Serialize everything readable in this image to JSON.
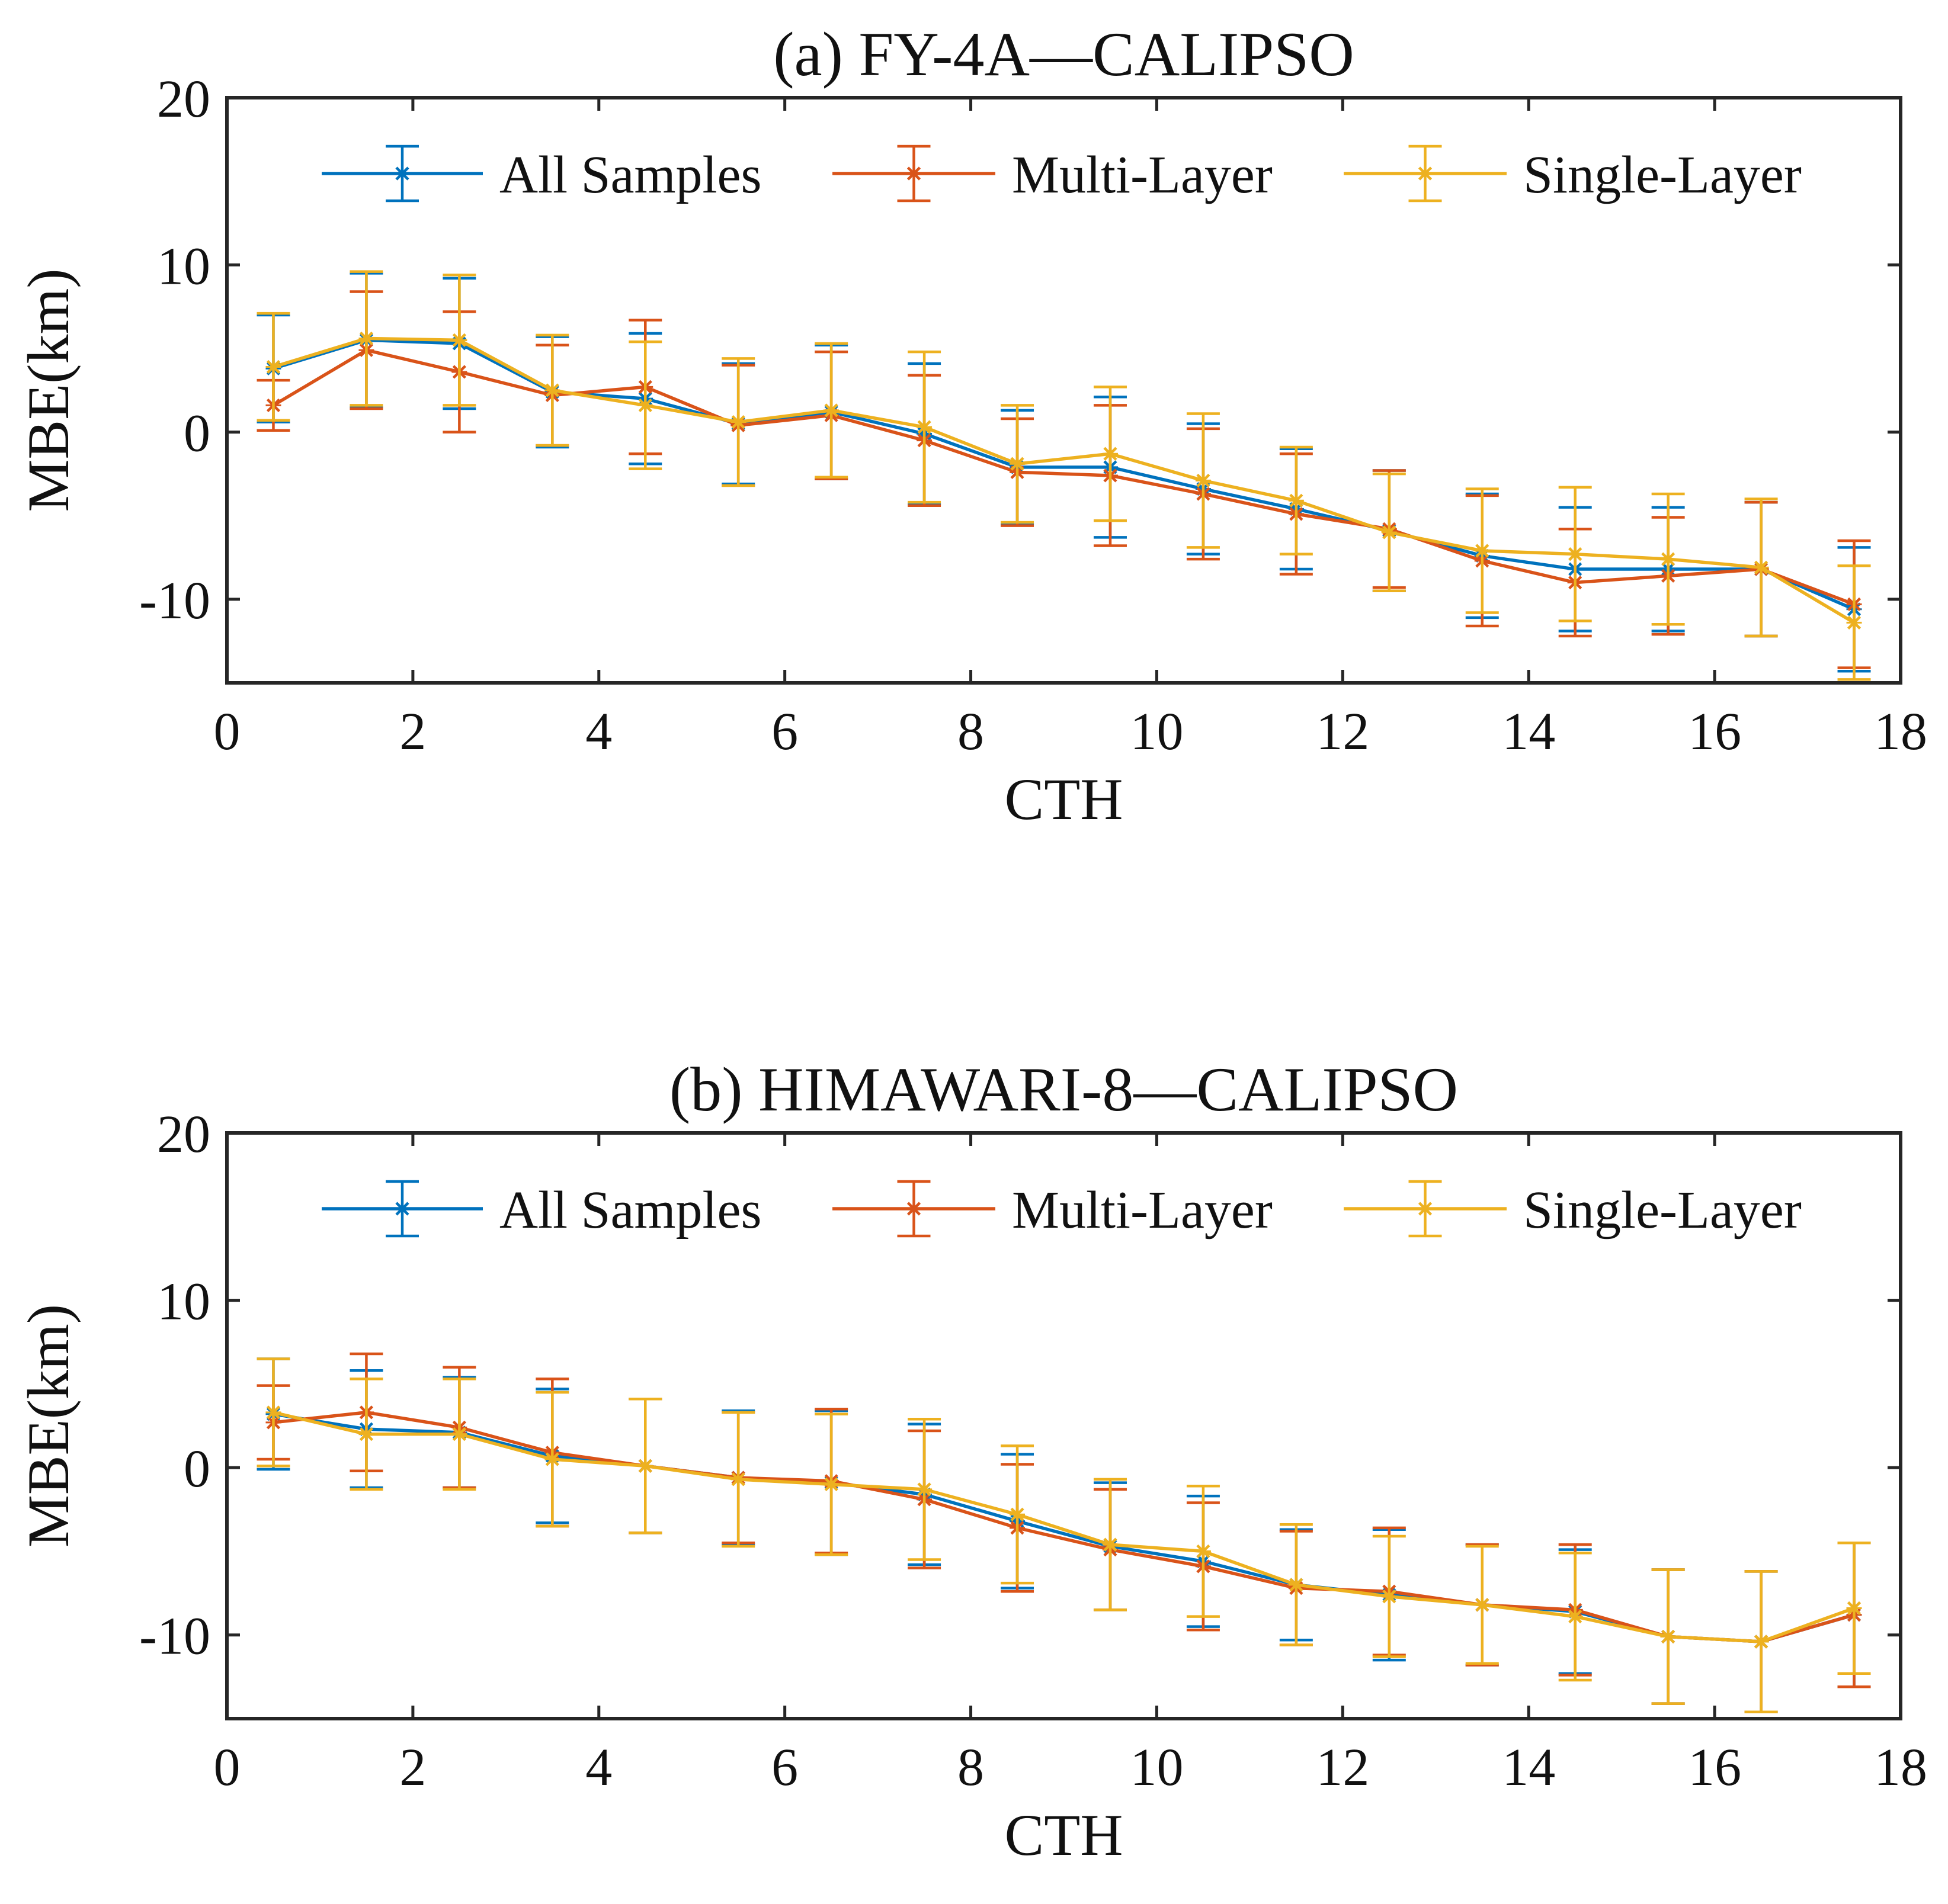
{
  "chart_data": [
    {
      "type": "line",
      "title": "(a) FY-4A—CALIPSO",
      "xlabel": "CTH",
      "ylabel": "MBE(km)",
      "xlim": [
        0,
        18
      ],
      "ylim": [
        -15,
        20
      ],
      "xticks": [
        0,
        2,
        4,
        6,
        8,
        10,
        12,
        14,
        16,
        18
      ],
      "yticks": [
        -10,
        0,
        10,
        20
      ],
      "legend_position": "top",
      "x": [
        0.5,
        1.5,
        2.5,
        3.5,
        4.5,
        5.5,
        6.5,
        7.5,
        8.5,
        9.5,
        10.5,
        11.5,
        12.5,
        13.5,
        14.5,
        15.5,
        16.5,
        17.5
      ],
      "series": [
        {
          "name": "All Samples",
          "color": "#0072BD",
          "values": [
            3.8,
            5.5,
            5.3,
            2.4,
            2.0,
            0.5,
            1.2,
            -0.1,
            -2.1,
            -2.1,
            -3.4,
            -4.6,
            -5.9,
            -7.4,
            -8.2,
            -8.2,
            -8.2,
            -10.6
          ],
          "errors": [
            3.2,
            4.0,
            3.9,
            3.3,
            3.9,
            3.6,
            4.0,
            4.2,
            3.4,
            4.2,
            3.9,
            3.6,
            3.6,
            3.7,
            3.7,
            3.7,
            4.0,
            3.7
          ]
        },
        {
          "name": "Multi-Layer",
          "color": "#D95319",
          "values": [
            1.6,
            4.9,
            3.6,
            2.2,
            2.7,
            0.4,
            1.0,
            -0.5,
            -2.4,
            -2.6,
            -3.7,
            -4.9,
            -5.8,
            -7.7,
            -9.0,
            -8.6,
            -8.2,
            -10.3
          ],
          "errors": [
            1.5,
            3.5,
            3.6,
            3.0,
            4.0,
            3.6,
            3.8,
            3.9,
            3.2,
            4.2,
            3.9,
            3.6,
            3.5,
            3.9,
            3.2,
            3.5,
            4.0,
            3.8
          ]
        },
        {
          "name": "Single-Layer",
          "color": "#EDB120",
          "values": [
            3.9,
            5.6,
            5.5,
            2.5,
            1.6,
            0.6,
            1.3,
            0.3,
            -1.9,
            -1.3,
            -2.9,
            -4.1,
            -6.0,
            -7.1,
            -7.3,
            -7.6,
            -8.1,
            -11.4
          ],
          "errors": [
            3.2,
            4.0,
            3.9,
            3.3,
            3.8,
            3.8,
            4.0,
            4.5,
            3.5,
            4.0,
            4.0,
            3.2,
            3.5,
            3.7,
            4.0,
            3.9,
            4.1,
            3.4
          ]
        }
      ]
    },
    {
      "type": "line",
      "title": "(b) HIMAWARI-8—CALIPSO",
      "xlabel": "CTH",
      "ylabel": "MBE(km)",
      "xlim": [
        0,
        18
      ],
      "ylim": [
        -15,
        20
      ],
      "xticks": [
        0,
        2,
        4,
        6,
        8,
        10,
        12,
        14,
        16,
        18
      ],
      "yticks": [
        -10,
        0,
        10,
        20
      ],
      "legend_position": "top",
      "x": [
        0.5,
        1.5,
        2.5,
        3.5,
        4.5,
        5.5,
        6.5,
        7.5,
        8.5,
        9.5,
        10.5,
        11.5,
        12.5,
        13.5,
        14.5,
        15.5,
        16.5,
        17.5
      ],
      "series": [
        {
          "name": "All Samples",
          "color": "#0072BD",
          "values": [
            3.2,
            2.3,
            2.1,
            0.7,
            0.1,
            -0.6,
            -0.9,
            -1.6,
            -3.2,
            -4.7,
            -5.6,
            -7.0,
            -7.6,
            -8.2,
            -8.6,
            -10.1,
            -10.4,
            -8.8
          ],
          "errors": [
            3.3,
            3.5,
            3.3,
            4.0,
            4.0,
            4.0,
            4.3,
            4.2,
            4.0,
            3.8,
            3.9,
            3.3,
            3.9,
            3.6,
            3.7,
            4.0,
            4.2,
            4.3
          ]
        },
        {
          "name": "Multi-Layer",
          "color": "#D95319",
          "values": [
            2.7,
            3.3,
            2.4,
            0.9,
            0.1,
            -0.6,
            -0.8,
            -1.9,
            -3.6,
            -4.9,
            -5.9,
            -7.2,
            -7.4,
            -8.2,
            -8.5,
            -10.1,
            -10.4,
            -8.8
          ],
          "errors": [
            2.2,
            3.5,
            3.6,
            4.4,
            4.0,
            3.9,
            4.3,
            4.1,
            3.8,
            3.6,
            3.8,
            3.4,
            3.8,
            3.6,
            3.9,
            4.0,
            4.2,
            4.3
          ]
        },
        {
          "name": "Single-Layer",
          "color": "#EDB120",
          "values": [
            3.3,
            2.0,
            2.0,
            0.5,
            0.1,
            -0.7,
            -1.0,
            -1.3,
            -2.8,
            -4.6,
            -5.0,
            -7.0,
            -7.7,
            -8.2,
            -8.9,
            -10.1,
            -10.4,
            -8.4
          ],
          "errors": [
            3.2,
            3.3,
            3.3,
            4.0,
            4.0,
            4.0,
            4.2,
            4.2,
            4.1,
            3.9,
            3.9,
            3.6,
            3.6,
            3.5,
            3.8,
            4.0,
            4.2,
            3.9
          ]
        }
      ]
    }
  ]
}
